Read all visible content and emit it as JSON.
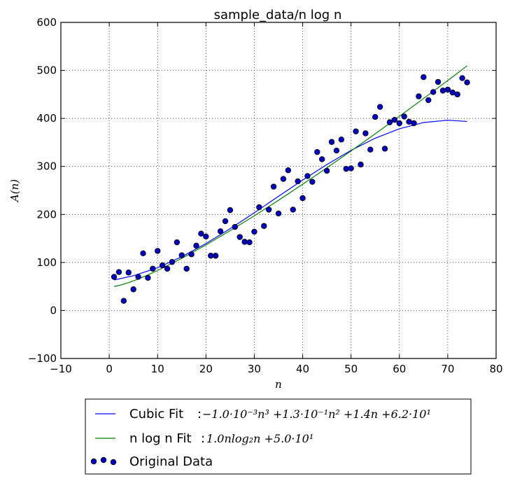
{
  "chart_data": {
    "type": "scatter",
    "title": "sample_data/n log n",
    "xlabel": "n",
    "ylabel": "A(n)",
    "xlim": [
      -10,
      80
    ],
    "ylim": [
      -100,
      600
    ],
    "xticks": [
      -10,
      0,
      10,
      20,
      30,
      40,
      50,
      60,
      70,
      80
    ],
    "yticks": [
      -100,
      0,
      100,
      200,
      300,
      400,
      500,
      600
    ],
    "xtick_labels": [
      "−10",
      "0",
      "10",
      "20",
      "30",
      "40",
      "50",
      "60",
      "70",
      "80"
    ],
    "ytick_labels": [
      "−100",
      "0",
      "100",
      "200",
      "300",
      "400",
      "500",
      "600"
    ],
    "grid": true,
    "legend_position": "below",
    "series": [
      {
        "name": "Cubic Fit",
        "kind": "line",
        "color": "#0000ff",
        "equation": "−1.0·10⁻³n³ +1.3·10⁻¹n² +1.4n +6.2·10¹",
        "x": [
          1,
          5,
          10,
          15,
          20,
          25,
          30,
          35,
          40,
          45,
          50,
          55,
          60,
          65,
          70,
          74
        ],
        "y": [
          63.5,
          72.3,
          89.0,
          111.9,
          139.4,
          170.4,
          203.5,
          237.7,
          271.6,
          304.0,
          333.5,
          358.8,
          378.5,
          391.5,
          396.3,
          393.7
        ]
      },
      {
        "name": "n log n Fit",
        "kind": "line",
        "color": "#008000",
        "equation": "1.0nlog₂n +5.0·10¹",
        "x": [
          1,
          2,
          4,
          6,
          8,
          10,
          15,
          20,
          25,
          30,
          35,
          40,
          45,
          50,
          55,
          60,
          65,
          70,
          74
        ],
        "y": [
          50,
          52,
          58,
          65.5,
          74,
          83.2,
          108.6,
          136.4,
          166.1,
          197.2,
          229.5,
          262.9,
          297.1,
          332.2,
          368.0,
          404.4,
          441.5,
          479.0,
          509.5
        ]
      },
      {
        "name": "Original Data",
        "kind": "scatter",
        "color": "#0000bf",
        "x": [
          1,
          2,
          3,
          4,
          5,
          6,
          7,
          8,
          9,
          10,
          11,
          12,
          13,
          14,
          15,
          16,
          17,
          18,
          19,
          20,
          21,
          22,
          23,
          24,
          25,
          26,
          27,
          28,
          29,
          30,
          31,
          32,
          33,
          34,
          35,
          36,
          37,
          38,
          39,
          40,
          41,
          42,
          43,
          44,
          45,
          46,
          47,
          48,
          49,
          50,
          51,
          52,
          53,
          54,
          55,
          56,
          57,
          58,
          59,
          60,
          61,
          62,
          63,
          64,
          65,
          66,
          67,
          68,
          69,
          70,
          71,
          72,
          73,
          74
        ],
        "y": [
          70,
          80,
          20,
          79,
          44,
          70,
          119,
          68,
          87,
          124,
          94,
          87,
          101,
          142,
          115,
          87,
          117,
          135,
          160,
          154,
          114,
          114,
          165,
          186,
          209,
          174,
          153,
          143,
          142,
          164,
          215,
          176,
          210,
          258,
          202,
          274,
          292,
          210,
          269,
          234,
          280,
          268,
          330,
          315,
          291,
          351,
          333,
          356,
          295,
          296,
          373,
          304,
          369,
          335,
          403,
          424,
          337,
          392,
          397,
          390,
          404,
          393,
          390,
          446,
          486,
          438,
          455,
          476,
          458,
          460,
          454,
          450,
          484,
          475
        ]
      }
    ]
  }
}
